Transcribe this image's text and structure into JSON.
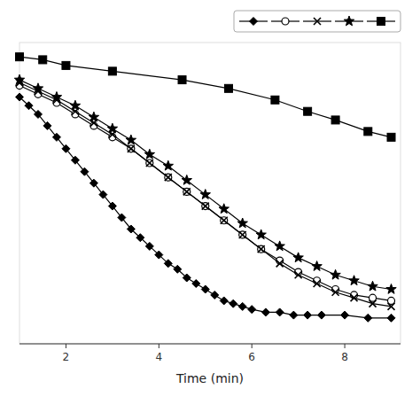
{
  "chart_data": {
    "type": "line",
    "xlabel": "Time (min)",
    "xlim": [
      1.0,
      9.2
    ],
    "ylim": [
      0,
      105
    ],
    "xticks": [
      2,
      4,
      6,
      8
    ],
    "tick_labels": "x",
    "legend": "top-right",
    "series": [
      {
        "color": "#000000",
        "marker": "diamond",
        "x": [
          1.0,
          1.2,
          1.4,
          1.6,
          1.8,
          2.0,
          2.2,
          2.4,
          2.6,
          2.8,
          3.0,
          3.2,
          3.4,
          3.6,
          3.8,
          4.0,
          4.2,
          4.4,
          4.6,
          4.8,
          5.0,
          5.2,
          5.4,
          5.6,
          5.8,
          6.0,
          6.3,
          6.6,
          6.9,
          7.2,
          7.5,
          8.0,
          8.5,
          9.0
        ],
        "values": [
          86,
          83,
          80,
          76,
          72,
          68,
          64,
          60,
          56,
          52,
          48,
          44,
          40,
          37,
          34,
          31,
          28,
          26,
          23,
          21,
          19,
          17,
          15,
          14,
          13,
          12,
          11,
          11,
          10,
          10,
          10,
          10,
          9,
          9
        ]
      },
      {
        "color": "#000000",
        "marker": "circle-open",
        "x": [
          1.0,
          1.4,
          1.8,
          2.2,
          2.6,
          3.0,
          3.4,
          3.8,
          4.2,
          4.6,
          5.0,
          5.4,
          5.8,
          6.2,
          6.6,
          7.0,
          7.4,
          7.8,
          8.2,
          8.6,
          9.0
        ],
        "values": [
          90,
          87,
          84,
          80,
          76,
          72,
          68,
          63,
          58,
          53,
          48,
          43,
          38,
          33,
          29,
          25,
          22,
          19,
          17,
          16,
          15
        ]
      },
      {
        "color": "#000000",
        "marker": "x",
        "x": [
          1.0,
          1.4,
          1.8,
          2.2,
          2.6,
          3.0,
          3.4,
          3.8,
          4.2,
          4.6,
          5.0,
          5.4,
          5.8,
          6.2,
          6.6,
          7.0,
          7.4,
          7.8,
          8.2,
          8.6,
          9.0
        ],
        "values": [
          91,
          88,
          85,
          81,
          77,
          73,
          68,
          63,
          58,
          53,
          48,
          43,
          38,
          33,
          28,
          24,
          21,
          18,
          16,
          14,
          13
        ]
      },
      {
        "color": "#000000",
        "marker": "star",
        "x": [
          1.0,
          1.4,
          1.8,
          2.2,
          2.6,
          3.0,
          3.4,
          3.8,
          4.2,
          4.6,
          5.0,
          5.4,
          5.8,
          6.2,
          6.6,
          7.0,
          7.4,
          7.8,
          8.2,
          8.6,
          9.0
        ],
        "values": [
          92,
          89,
          86,
          83,
          79,
          75,
          71,
          66,
          62,
          57,
          52,
          47,
          42,
          38,
          34,
          30,
          27,
          24,
          22,
          20,
          19
        ]
      },
      {
        "color": "#000000",
        "marker": "square",
        "x": [
          1.0,
          1.5,
          2.0,
          3.0,
          4.5,
          5.5,
          6.5,
          7.2,
          7.8,
          8.5,
          9.0
        ],
        "values": [
          100,
          99,
          97,
          95,
          92,
          89,
          85,
          81,
          78,
          74,
          72
        ]
      }
    ]
  }
}
